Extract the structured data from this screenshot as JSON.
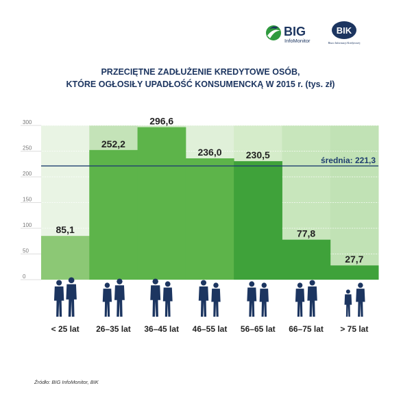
{
  "logos": {
    "big_main": "BIG",
    "big_sub": "InfoMonitor",
    "bik_main": "BIK",
    "bik_sub": "Biuro Informacji Kredytowej"
  },
  "title_line1": "PRZECIĘTNE ZADŁUŻENIE KREDYTOWE OSÓB,",
  "title_line2": "KTÓRE OGŁOSIŁY UPADŁOŚĆ KONSUMENCKĄ W 2015 r. (tys. zł)",
  "source": "Źródło: BIG InfoMonitor, BIK",
  "colors": {
    "title": "#1c3560",
    "average_line": "#1f3e6e",
    "bar_light": "#8cc875",
    "bar_mid": "#5db44a",
    "bar_dark": "#3fa23a",
    "silhouette": "#1c3560"
  },
  "chart_data": {
    "type": "bar",
    "categories": [
      "< 25 lat",
      "26–35 lat",
      "36–45 lat",
      "46–55 lat",
      "56–65 lat",
      "66–75 lat",
      "> 75 lat"
    ],
    "values": [
      85.1,
      252.2,
      296.6,
      236.0,
      230.5,
      77.8,
      27.7
    ],
    "value_labels": [
      "85,1",
      "252,2",
      "296,6",
      "236,0",
      "230,5",
      "77,8",
      "27,7"
    ],
    "ylim": [
      0,
      300
    ],
    "yticks": [
      0,
      50,
      100,
      150,
      200,
      250,
      300
    ],
    "average": 221.3,
    "average_label": "średnia: 221,3",
    "grid": true
  }
}
